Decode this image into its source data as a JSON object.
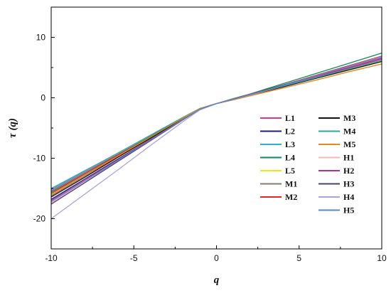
{
  "chart_data": {
    "type": "line",
    "title": "",
    "xlabel": "q",
    "ylabel": "τ (q)",
    "xlim": [
      -10,
      10
    ],
    "ylim": [
      -25,
      15
    ],
    "xticks": [
      -10,
      -5,
      0,
      5,
      10
    ],
    "yticks": [
      -20,
      -10,
      0,
      10
    ],
    "x": [
      -10,
      -8,
      -6,
      -4,
      -2,
      -1,
      0,
      1,
      2,
      4,
      6,
      8,
      10
    ],
    "legend_position": "lower-right",
    "series": [
      {
        "name": "L1",
        "color": "#e0338f",
        "values": [
          -15.4,
          -12.4,
          -9.4,
          -6.4,
          -3.3,
          -1.8,
          -0.95,
          -0.3,
          0.4,
          1.9,
          3.4,
          4.9,
          6.4
        ]
      },
      {
        "name": "L2",
        "color": "#1f1f7a",
        "values": [
          -16.8,
          -13.5,
          -10.2,
          -6.9,
          -3.5,
          -1.9,
          -0.95,
          -0.25,
          0.45,
          2.0,
          3.6,
          5.1,
          6.6
        ]
      },
      {
        "name": "L3",
        "color": "#2ab0d0",
        "values": [
          -15.0,
          -12.1,
          -9.2,
          -6.2,
          -3.2,
          -1.75,
          -0.95,
          -0.3,
          0.4,
          1.8,
          3.2,
          4.6,
          6.0
        ]
      },
      {
        "name": "L4",
        "color": "#0e8a5a",
        "values": [
          -15.6,
          -12.6,
          -9.5,
          -6.4,
          -3.3,
          -1.8,
          -0.95,
          -0.15,
          0.6,
          2.3,
          4.0,
          5.7,
          7.4
        ]
      },
      {
        "name": "L5",
        "color": "#f2e20f",
        "values": [
          -15.8,
          -12.7,
          -9.6,
          -6.5,
          -3.4,
          -1.8,
          -0.95,
          -0.3,
          0.4,
          1.8,
          3.3,
          4.7,
          6.1
        ]
      },
      {
        "name": "M1",
        "color": "#8a7a6e",
        "values": [
          -16.2,
          -13.0,
          -9.8,
          -6.6,
          -3.4,
          -1.85,
          -0.95,
          -0.35,
          0.3,
          1.6,
          2.9,
          4.3,
          5.6
        ]
      },
      {
        "name": "M2",
        "color": "#e32626",
        "values": [
          -15.8,
          -12.7,
          -9.6,
          -6.5,
          -3.3,
          -1.8,
          -0.95,
          -0.2,
          0.55,
          2.1,
          3.7,
          5.3,
          6.9
        ]
      },
      {
        "name": "M3",
        "color": "#111111",
        "values": [
          -16.4,
          -13.2,
          -9.9,
          -6.7,
          -3.4,
          -1.85,
          -0.95,
          -0.3,
          0.4,
          1.8,
          3.2,
          4.6,
          6.0
        ]
      },
      {
        "name": "M4",
        "color": "#2aa8a0",
        "values": [
          -15.2,
          -12.2,
          -9.2,
          -6.2,
          -3.2,
          -1.75,
          -0.95,
          -0.3,
          0.4,
          1.9,
          3.3,
          4.8,
          6.2
        ]
      },
      {
        "name": "M5",
        "color": "#e88a1a",
        "values": [
          -16.0,
          -12.8,
          -9.7,
          -6.5,
          -3.3,
          -1.8,
          -0.95,
          -0.35,
          0.3,
          1.6,
          2.9,
          4.3,
          5.6
        ]
      },
      {
        "name": "H1",
        "color": "#f4b8b8",
        "values": [
          -17.4,
          -13.9,
          -10.5,
          -7.0,
          -3.5,
          -1.9,
          -0.95,
          -0.25,
          0.5,
          2.0,
          3.5,
          5.1,
          6.6
        ]
      },
      {
        "name": "H2",
        "color": "#b03090",
        "values": [
          -17.0,
          -13.6,
          -10.3,
          -6.9,
          -3.5,
          -1.9,
          -0.95,
          -0.25,
          0.45,
          2.0,
          3.5,
          5.0,
          6.5
        ]
      },
      {
        "name": "H3",
        "color": "#4a4070",
        "values": [
          -17.6,
          -14.1,
          -10.6,
          -7.1,
          -3.6,
          -1.9,
          -0.95,
          -0.25,
          0.5,
          2.1,
          3.6,
          5.2,
          6.7
        ]
      },
      {
        "name": "H4",
        "color": "#b0a0d8",
        "values": [
          -20.0,
          -16.0,
          -12.0,
          -7.9,
          -3.9,
          -2.0,
          -0.95,
          -0.25,
          0.45,
          2.0,
          3.6,
          5.2,
          6.8
        ]
      },
      {
        "name": "H5",
        "color": "#5a86c8",
        "values": [
          -17.2,
          -13.8,
          -10.4,
          -7.0,
          -3.5,
          -1.9,
          -0.95,
          -0.25,
          0.5,
          2.0,
          3.6,
          5.2,
          6.7
        ]
      }
    ]
  }
}
